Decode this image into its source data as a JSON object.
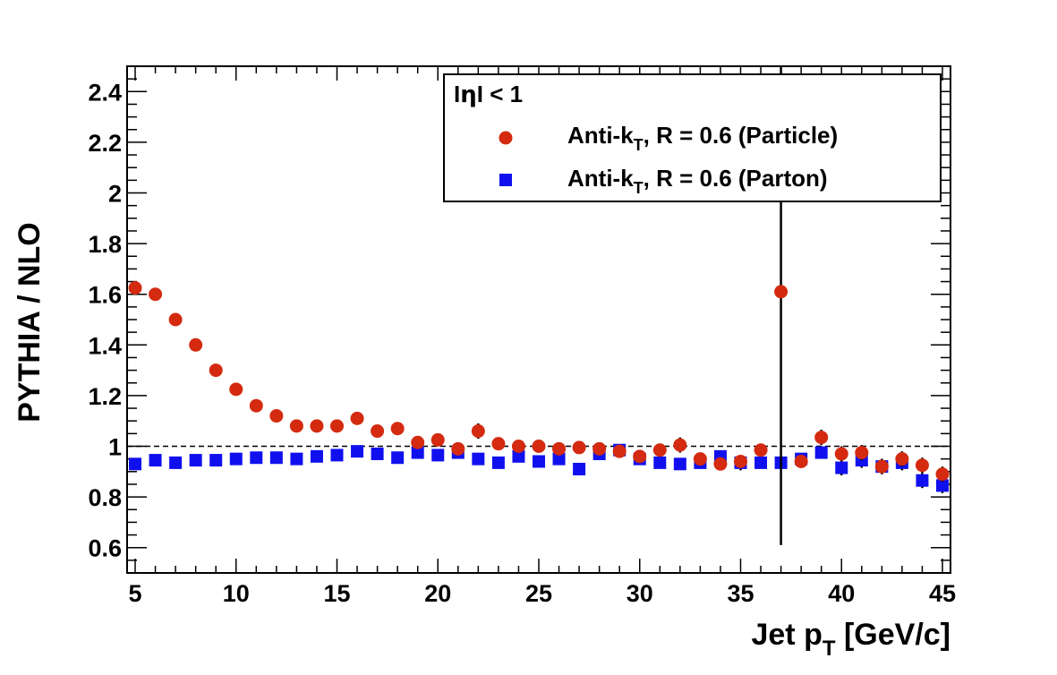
{
  "chart_data": {
    "type": "scatter",
    "xlabel": "Jet p_T [GeV/c]",
    "xlabel_main": "Jet p",
    "xlabel_sub": "T",
    "xlabel_units": " [GeV/c]",
    "ylabel": "PYTHIA / NLO",
    "xlim": [
      4.6,
      45.4
    ],
    "ylim": [
      0.5,
      2.5
    ],
    "xticks": [
      5,
      10,
      15,
      20,
      25,
      30,
      35,
      40,
      45
    ],
    "yticks": [
      0.6,
      0.8,
      1,
      1.2,
      1.4,
      1.6,
      1.8,
      2,
      2.2,
      2.4
    ],
    "reference_line": 1,
    "legend": {
      "position": "top-right",
      "header": "|η| < 1",
      "header_left": "I",
      "header_eta": "η",
      "header_right": "I < 1"
    },
    "series": [
      {
        "name": "Anti-k_T, R = 0.6 (Particle)",
        "label_prefix": "Anti-k",
        "label_sub": "T",
        "label_suffix": ", R = 0.6 (Particle)",
        "marker": "circle",
        "color": "#d42a10",
        "x": [
          5,
          6,
          7,
          8,
          9,
          10,
          11,
          12,
          13,
          14,
          15,
          16,
          17,
          18,
          19,
          20,
          21,
          22,
          23,
          24,
          25,
          26,
          27,
          28,
          29,
          30,
          31,
          32,
          33,
          34,
          35,
          36,
          37,
          38,
          39,
          40,
          41,
          42,
          43,
          44,
          45
        ],
        "y": [
          1.625,
          1.6,
          1.5,
          1.4,
          1.3,
          1.225,
          1.16,
          1.12,
          1.08,
          1.08,
          1.08,
          1.11,
          1.06,
          1.07,
          1.015,
          1.025,
          0.99,
          1.06,
          1.01,
          1.0,
          1.0,
          0.99,
          0.995,
          0.99,
          0.98,
          0.96,
          0.985,
          1.005,
          0.95,
          0.93,
          0.94,
          0.985,
          1.61,
          0.94,
          1.035,
          0.97,
          0.975,
          0.92,
          0.95,
          0.925,
          0.89
        ],
        "yerr": [
          0,
          0,
          0,
          0,
          0,
          0,
          0,
          0,
          0,
          0,
          0,
          0,
          0,
          0,
          0,
          0,
          0,
          0.03,
          0,
          0,
          0,
          0,
          0,
          0,
          0,
          0,
          0.02,
          0.03,
          0.02,
          0.02,
          0.02,
          0.02,
          1.0,
          0.02,
          0.03,
          0.03,
          0.03,
          0.03,
          0.03,
          0.03,
          0.03
        ]
      },
      {
        "name": "Anti-k_T, R = 0.6 (Parton)",
        "label_prefix": "Anti-k",
        "label_sub": "T",
        "label_suffix": ", R = 0.6 (Parton)",
        "marker": "square",
        "color": "#1010ee",
        "x": [
          5,
          6,
          7,
          8,
          9,
          10,
          11,
          12,
          13,
          14,
          15,
          16,
          17,
          18,
          19,
          20,
          21,
          22,
          23,
          24,
          25,
          26,
          27,
          28,
          29,
          30,
          31,
          32,
          33,
          34,
          35,
          36,
          37,
          38,
          39,
          40,
          41,
          42,
          43,
          44,
          45
        ],
        "y": [
          0.93,
          0.945,
          0.935,
          0.945,
          0.945,
          0.95,
          0.955,
          0.955,
          0.95,
          0.96,
          0.965,
          0.98,
          0.97,
          0.955,
          0.975,
          0.965,
          0.975,
          0.95,
          0.935,
          0.96,
          0.94,
          0.95,
          0.91,
          0.97,
          0.985,
          0.95,
          0.935,
          0.93,
          0.935,
          0.96,
          0.935,
          0.935,
          0.935,
          0.95,
          0.975,
          0.915,
          0.945,
          0.92,
          0.935,
          0.865,
          0.845
        ],
        "yerr": [
          0,
          0,
          0,
          0,
          0,
          0,
          0,
          0,
          0,
          0,
          0,
          0,
          0,
          0,
          0,
          0,
          0,
          0,
          0,
          0,
          0,
          0,
          0,
          0,
          0,
          0,
          0.02,
          0.02,
          0.02,
          0.02,
          0.03,
          0.02,
          0.02,
          0.02,
          0.02,
          0.03,
          0.03,
          0.03,
          0.03,
          0.03,
          0.03
        ]
      }
    ]
  }
}
